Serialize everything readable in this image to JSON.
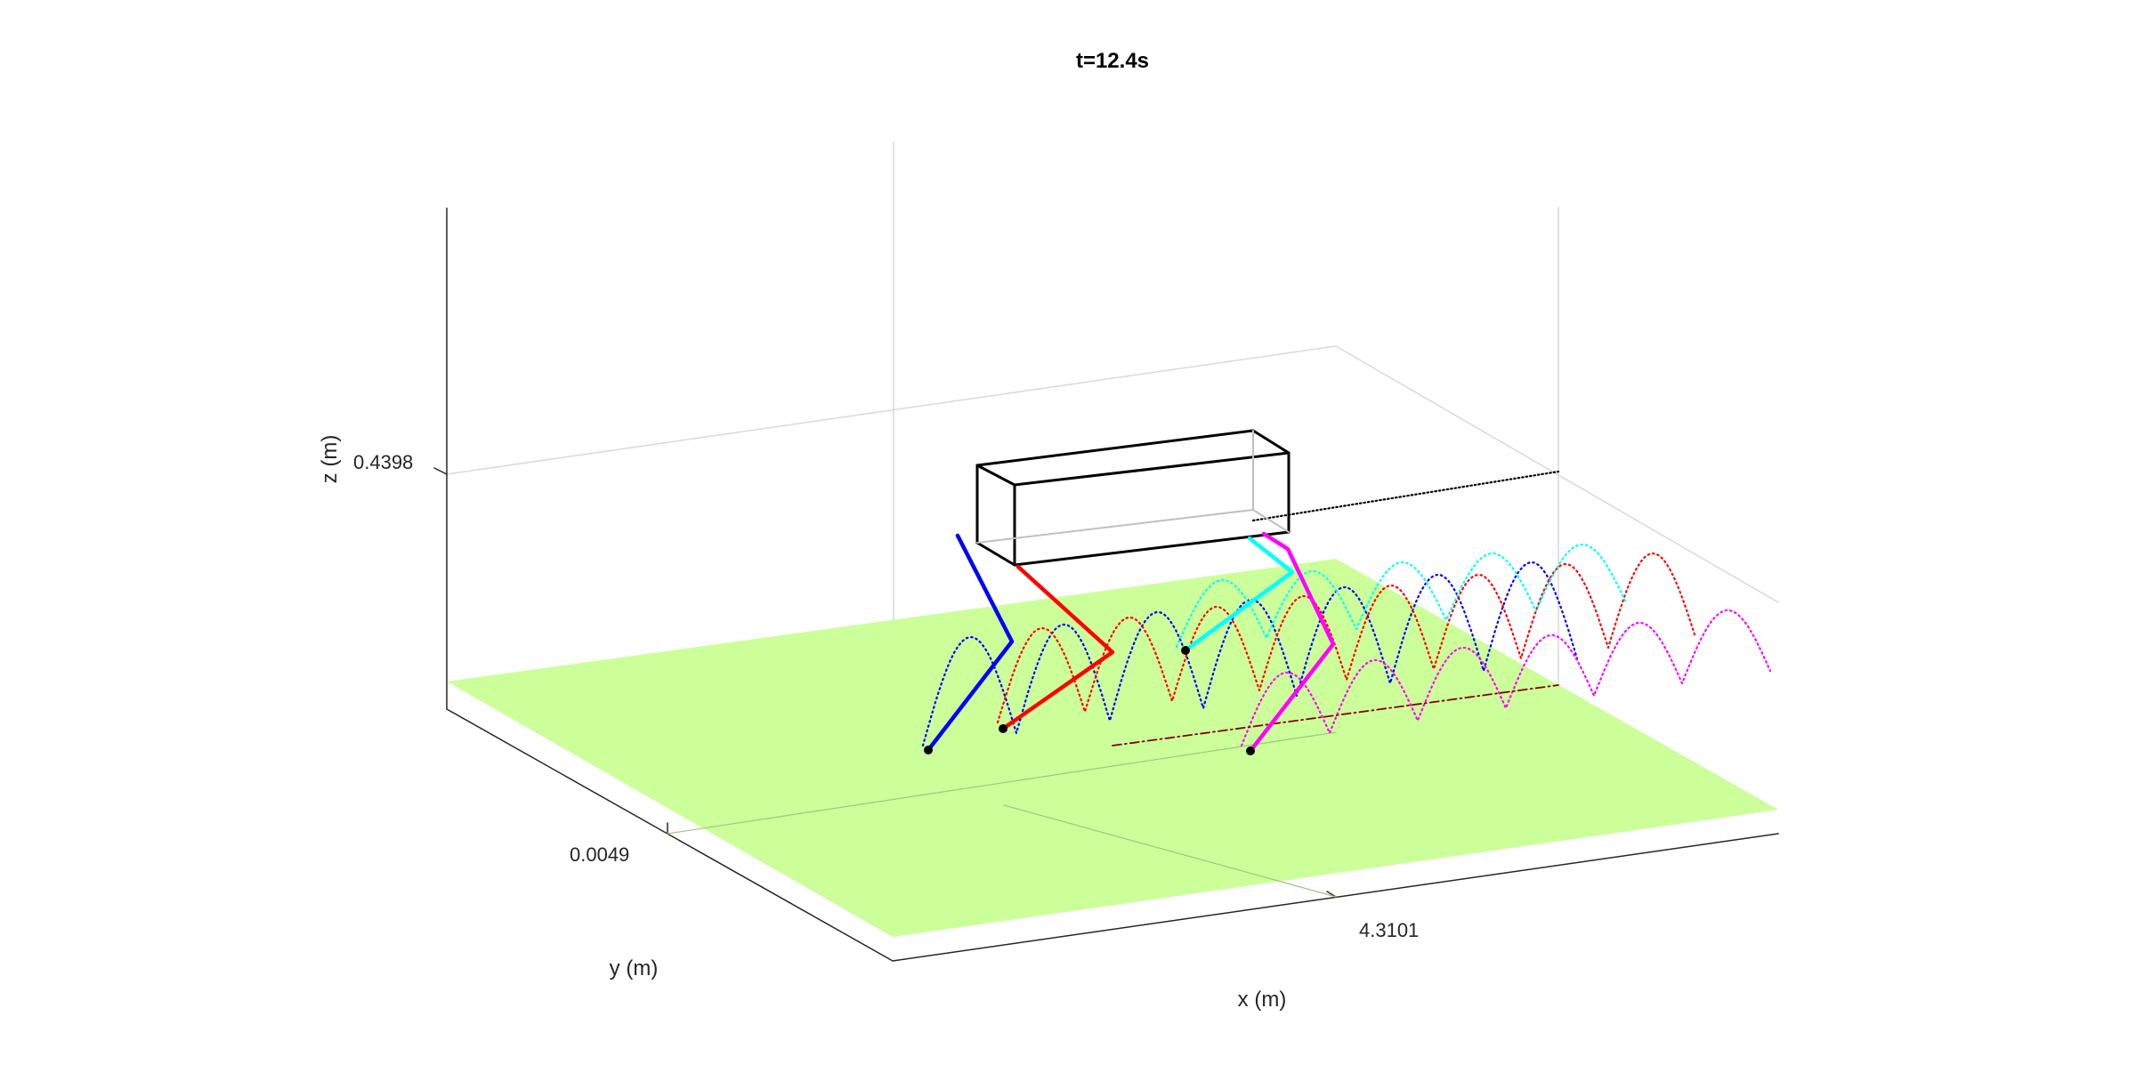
{
  "chart_data": {
    "type": "3d-line",
    "title": "t=12.4s",
    "xlabel": "x (m)",
    "ylabel": "y (m)",
    "zlabel": "z (m)",
    "x_ticks": [
      "4.3101"
    ],
    "y_ticks": [
      "0.0049"
    ],
    "z_ticks": [
      "0.4398"
    ],
    "grid": "off",
    "box": "on",
    "ground_color": "#ccff99",
    "body_color": "#000000",
    "legs": [
      {
        "color": "#0000ff"
      },
      {
        "color": "#ff0000"
      },
      {
        "color": "#00ffff"
      },
      {
        "color": "#ff00ff"
      }
    ],
    "com_trace_color": "#000000",
    "com_reference_color": "#800000"
  }
}
